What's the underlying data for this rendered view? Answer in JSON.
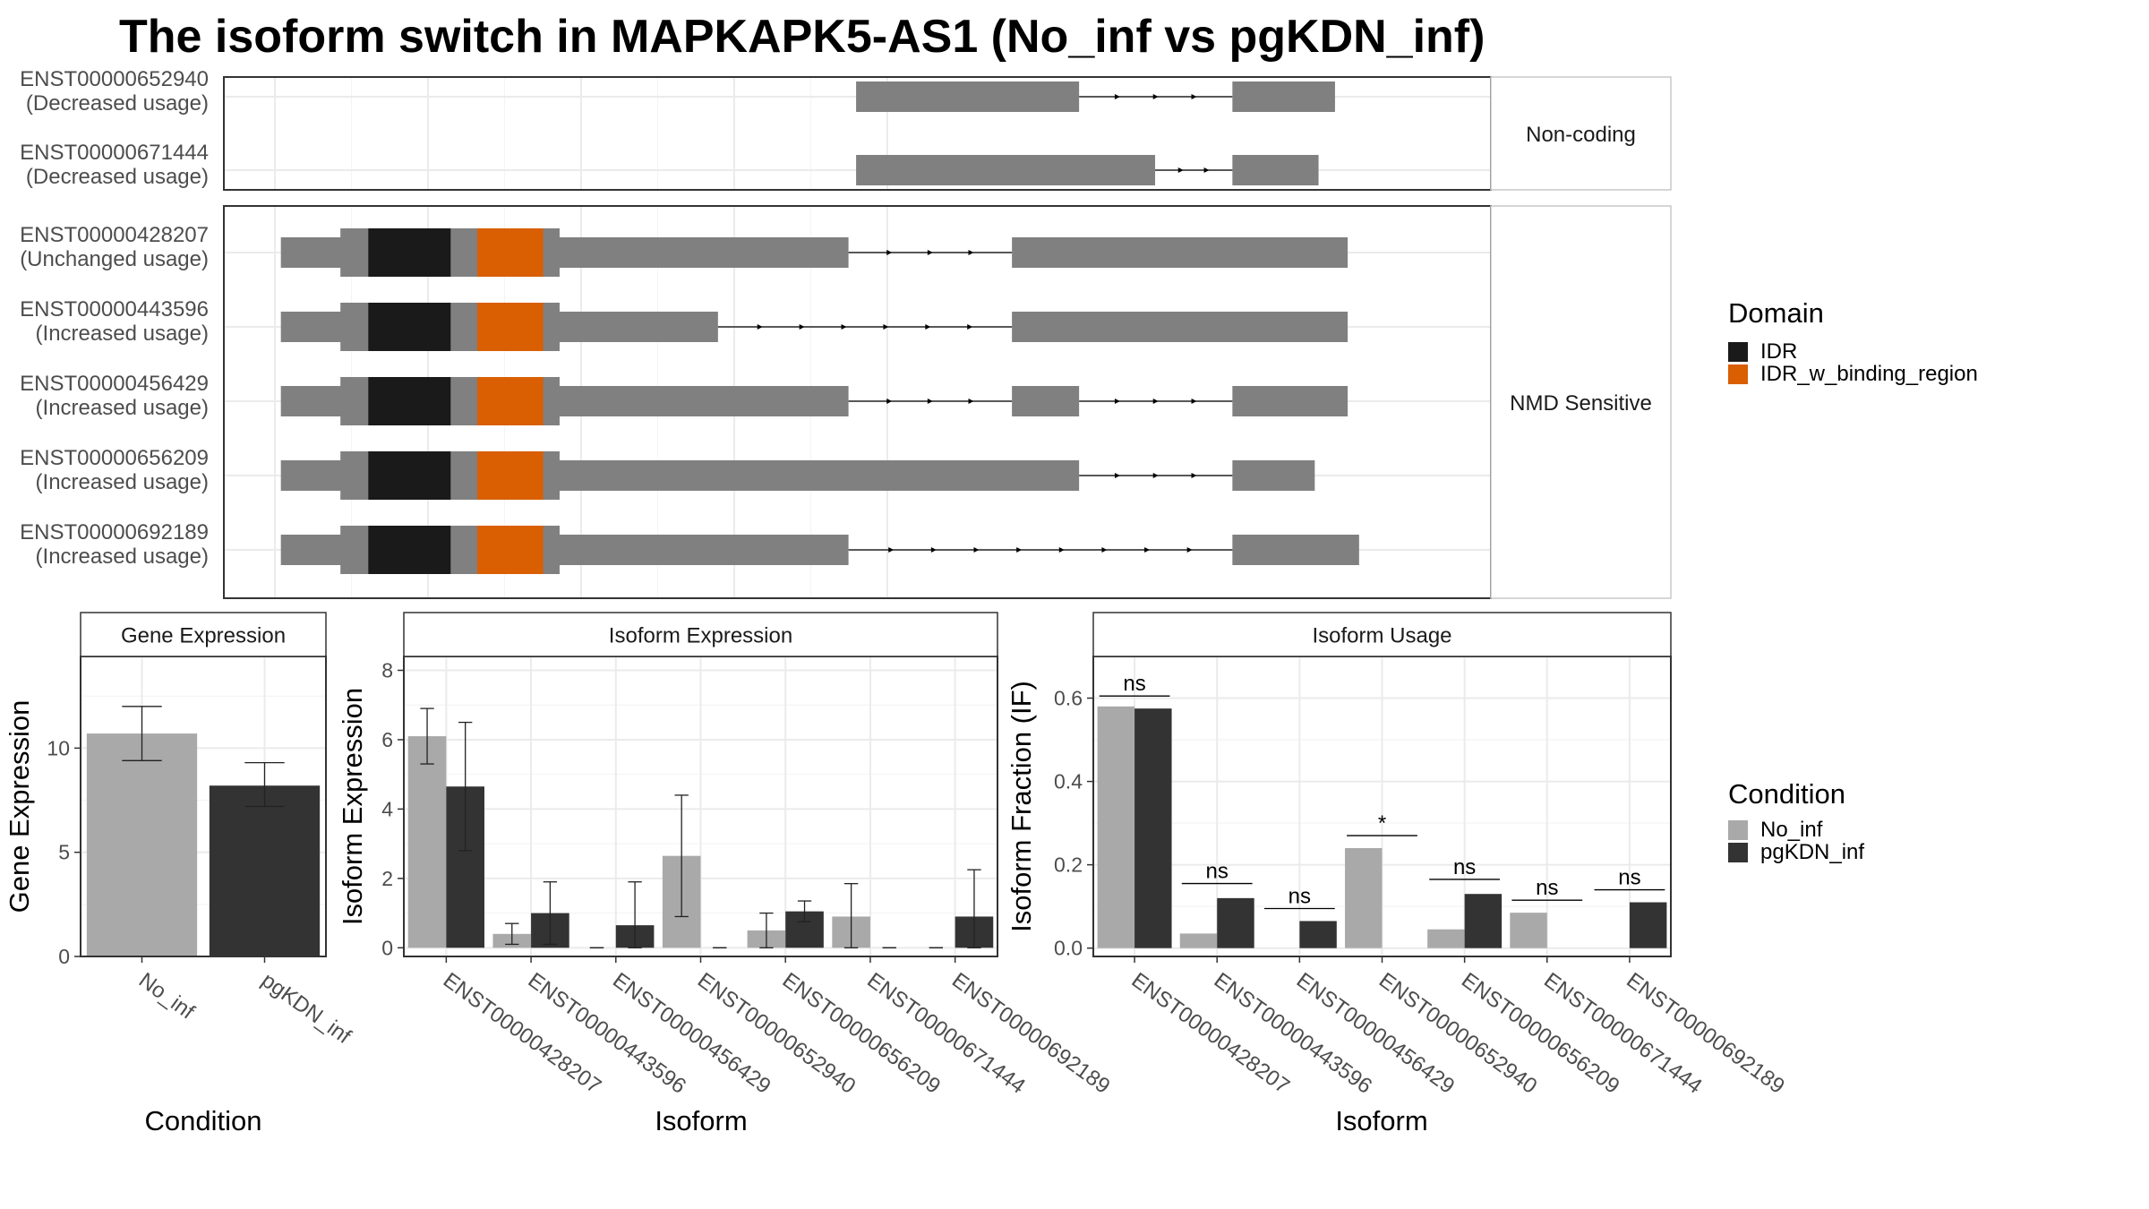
{
  "title": "The isoform switch in MAPKAPK5-AS1 (No_inf vs pgKDN_inf)",
  "structure": {
    "panels": [
      {
        "label": "Non-coding",
        "isoforms": [
          {
            "id": "ENST00000652940",
            "usage": "(Decreased usage)",
            "blocks": [
              [
                0.499,
                0.675
              ],
              [
                0.796,
                0.877
              ]
            ],
            "domains": []
          },
          {
            "id": "ENST00000671444",
            "usage": "(Decreased usage)",
            "blocks": [
              [
                0.499,
                0.735
              ],
              [
                0.796,
                0.864
              ]
            ],
            "domains": []
          }
        ]
      },
      {
        "label": "NMD Sensitive",
        "isoforms": [
          {
            "id": "ENST00000428207",
            "usage": "(Unchanged usage)",
            "blocks": [
              [
                0.045,
                0.493
              ],
              [
                0.622,
                0.887
              ]
            ],
            "domains": [
              {
                "name": "IDR",
                "range": [
                  0.114,
                  0.179
                ]
              },
              {
                "name": "IDR_w_binding_region",
                "range": [
                  0.2,
                  0.252
                ]
              }
            ]
          },
          {
            "id": "ENST00000443596",
            "usage": "(Increased usage)",
            "blocks": [
              [
                0.045,
                0.39
              ],
              [
                0.622,
                0.887
              ]
            ],
            "domains": [
              {
                "name": "IDR",
                "range": [
                  0.114,
                  0.179
                ]
              },
              {
                "name": "IDR_w_binding_region",
                "range": [
                  0.2,
                  0.252
                ]
              }
            ]
          },
          {
            "id": "ENST00000456429",
            "usage": "(Increased usage)",
            "blocks": [
              [
                0.045,
                0.493
              ],
              [
                0.622,
                0.675
              ],
              [
                0.796,
                0.887
              ]
            ],
            "domains": [
              {
                "name": "IDR",
                "range": [
                  0.114,
                  0.179
                ]
              },
              {
                "name": "IDR_w_binding_region",
                "range": [
                  0.2,
                  0.252
                ]
              }
            ]
          },
          {
            "id": "ENST00000656209",
            "usage": "(Increased usage)",
            "blocks": [
              [
                0.045,
                0.675
              ],
              [
                0.796,
                0.861
              ]
            ],
            "domains": [
              {
                "name": "IDR",
                "range": [
                  0.114,
                  0.179
                ]
              },
              {
                "name": "IDR_w_binding_region",
                "range": [
                  0.2,
                  0.252
                ]
              }
            ]
          },
          {
            "id": "ENST00000692189",
            "usage": "(Increased usage)",
            "blocks": [
              [
                0.045,
                0.493
              ],
              [
                0.796,
                0.896
              ]
            ],
            "domains": [
              {
                "name": "IDR",
                "range": [
                  0.114,
                  0.179
                ]
              },
              {
                "name": "IDR_w_binding_region",
                "range": [
                  0.2,
                  0.252
                ]
              }
            ]
          }
        ]
      }
    ],
    "cds_range": [
      0.092,
      0.265
    ],
    "exon_color": "#808080",
    "domain_colors": {
      "IDR": "#1a1a1a",
      "IDR_w_binding_region": "#d95f02"
    }
  },
  "legends": {
    "domain": {
      "title": "Domain",
      "items": [
        {
          "label": "IDR",
          "color": "#1a1a1a"
        },
        {
          "label": "IDR_w_binding_region",
          "color": "#d95f02"
        }
      ]
    },
    "condition": {
      "title": "Condition",
      "items": [
        {
          "label": "No_inf",
          "color": "#a9a9a9"
        },
        {
          "label": "pgKDN_inf",
          "color": "#333333"
        }
      ]
    }
  },
  "chart_data": [
    {
      "type": "bar",
      "title": "Gene Expression",
      "xlabel": "Condition",
      "ylabel": "Gene Expression",
      "ylim": [
        0,
        14.4
      ],
      "yticks": [
        0,
        5,
        10
      ],
      "categories": [
        "No_inf",
        "pgKDN_inf"
      ],
      "values": [
        10.7,
        8.2
      ],
      "errors": [
        [
          9.4,
          12.0
        ],
        [
          7.2,
          9.3
        ]
      ],
      "colors": [
        "#a9a9a9",
        "#333333"
      ]
    },
    {
      "type": "bar",
      "title": "Isoform Expression",
      "xlabel": "Isoform",
      "ylabel": "Isoform Expression",
      "ylim": [
        -0.25,
        8.4
      ],
      "yticks": [
        0,
        2,
        4,
        6,
        8
      ],
      "categories": [
        "ENST00000428207",
        "ENST00000443596",
        "ENST00000456429",
        "ENST00000652940",
        "ENST00000656209",
        "ENST00000671444",
        "ENST00000692189"
      ],
      "series": [
        {
          "name": "No_inf",
          "color": "#a9a9a9",
          "values": [
            6.1,
            0.4,
            0.0,
            2.65,
            0.5,
            0.9,
            0.0
          ],
          "errors": [
            [
              5.3,
              6.9
            ],
            [
              0.1,
              0.7
            ],
            [
              0.0,
              0.0
            ],
            [
              0.9,
              4.4
            ],
            [
              0.0,
              1.0
            ],
            [
              0.0,
              1.85
            ],
            [
              0.0,
              0.0
            ]
          ]
        },
        {
          "name": "pgKDN_inf",
          "color": "#333333",
          "values": [
            4.65,
            1.0,
            0.65,
            0.0,
            1.05,
            0.0,
            0.9
          ],
          "errors": [
            [
              2.8,
              6.5
            ],
            [
              0.1,
              1.9
            ],
            [
              0.0,
              1.9
            ],
            [
              0.0,
              0.0
            ],
            [
              0.75,
              1.35
            ],
            [
              0.0,
              0.0
            ],
            [
              0.0,
              2.25
            ]
          ]
        }
      ]
    },
    {
      "type": "bar",
      "title": "Isoform Usage",
      "xlabel": "Isoform",
      "ylabel": "Isoform Fraction (IF)",
      "ylim": [
        -0.02,
        0.7
      ],
      "yticks": [
        0.0,
        0.2,
        0.4,
        0.6
      ],
      "ytick_labels": [
        "0.0",
        "0.2",
        "0.4",
        "0.6"
      ],
      "categories": [
        "ENST00000428207",
        "ENST00000443596",
        "ENST00000456429",
        "ENST00000652940",
        "ENST00000656209",
        "ENST00000671444",
        "ENST00000692189"
      ],
      "series": [
        {
          "name": "No_inf",
          "color": "#a9a9a9",
          "values": [
            0.58,
            0.035,
            0.0,
            0.24,
            0.045,
            0.085,
            0.0
          ]
        },
        {
          "name": "pgKDN_inf",
          "color": "#333333",
          "values": [
            0.575,
            0.12,
            0.065,
            0.0,
            0.13,
            0.0,
            0.11
          ]
        }
      ],
      "annotations": [
        {
          "category": "ENST00000428207",
          "label": "ns",
          "y": 0.605
        },
        {
          "category": "ENST00000443596",
          "label": "ns",
          "y": 0.155
        },
        {
          "category": "ENST00000456429",
          "label": "ns",
          "y": 0.095
        },
        {
          "category": "ENST00000652940",
          "label": "*",
          "y": 0.27
        },
        {
          "category": "ENST00000656209",
          "label": "ns",
          "y": 0.165
        },
        {
          "category": "ENST00000671444",
          "label": "ns",
          "y": 0.115
        },
        {
          "category": "ENST00000692189",
          "label": "ns",
          "y": 0.14
        }
      ]
    }
  ]
}
